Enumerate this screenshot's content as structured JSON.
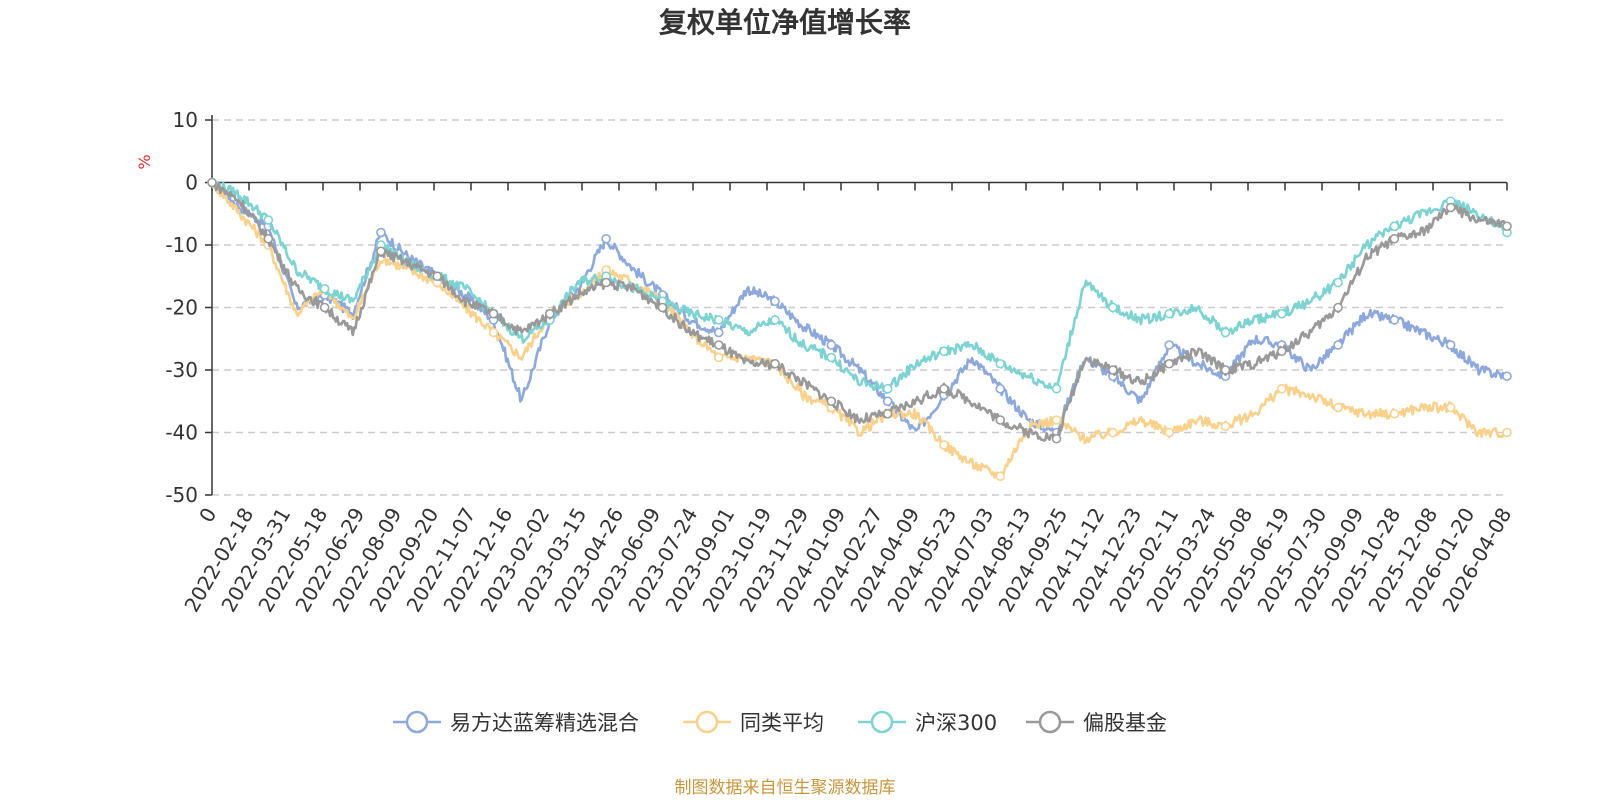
{
  "chart_data": {
    "type": "line",
    "title": "复权单位净值增长率",
    "ylabel": "%",
    "ylim": [
      -50,
      10
    ],
    "yticks": [
      10,
      0,
      -10,
      -20,
      -30,
      -40,
      -50
    ],
    "grid": true,
    "legend_position": "bottom",
    "x_ticks": [
      "0",
      "2022-02-18",
      "2022-03-31",
      "2022-05-18",
      "2022-06-29",
      "2022-08-09",
      "2022-09-20",
      "2022-11-07",
      "2022-12-16",
      "2023-02-02",
      "2023-03-15",
      "2023-04-26",
      "2023-06-09",
      "2023-07-24",
      "2023-09-01",
      "2023-10-19",
      "2023-11-29",
      "2024-01-09",
      "2024-02-27",
      "2024-04-09",
      "2024-05-23",
      "2024-07-03",
      "2024-08-13",
      "2024-09-25",
      "2024-11-12",
      "2024-12-23",
      "2025-02-11",
      "2025-03-24",
      "2025-05-08",
      "2025-06-19",
      "2025-07-30",
      "2025-09-09",
      "2025-10-28",
      "2025-12-08",
      "2026-01-20",
      "2026-04-08"
    ],
    "series": [
      {
        "name": "易方达蓝筹精选混合",
        "color": "#8ca8dc",
        "values": [
          0,
          -4,
          -7,
          -20,
          -18,
          -21,
          -8,
          -12,
          -15,
          -18,
          -22,
          -35,
          -22,
          -17,
          -9,
          -14,
          -18,
          -22,
          -24,
          -17,
          -19,
          -23,
          -26,
          -30,
          -35,
          -40,
          -34,
          -28,
          -33,
          -38,
          -40,
          -28,
          -31,
          -35,
          -26,
          -29,
          -31,
          -25,
          -26,
          -30,
          -26,
          -21,
          -22,
          -24,
          -26,
          -30,
          -31
        ]
      },
      {
        "name": "同类平均",
        "color": "#fad18c",
        "values": [
          0,
          -5,
          -10,
          -21,
          -17,
          -22,
          -12,
          -14,
          -16,
          -20,
          -24,
          -28,
          -21,
          -18,
          -14,
          -16,
          -19,
          -24,
          -28,
          -28,
          -29,
          -34,
          -36,
          -40,
          -37,
          -37,
          -42,
          -45,
          -47,
          -39,
          -38,
          -41,
          -40,
          -38,
          -40,
          -38,
          -39,
          -37,
          -33,
          -34,
          -36,
          -37,
          -37,
          -36,
          -36,
          -40,
          -40
        ]
      },
      {
        "name": "沪深300",
        "color": "#7dd3d2",
        "values": [
          0,
          -2,
          -6,
          -14,
          -17,
          -19,
          -10,
          -13,
          -15,
          -17,
          -21,
          -25,
          -22,
          -16,
          -15,
          -17,
          -19,
          -21,
          -22,
          -24,
          -22,
          -26,
          -28,
          -32,
          -33,
          -29,
          -27,
          -26,
          -29,
          -31,
          -33,
          -16,
          -20,
          -22,
          -21,
          -20,
          -24,
          -22,
          -21,
          -19,
          -16,
          -10,
          -7,
          -5,
          -3,
          -5,
          -8
        ]
      },
      {
        "name": "偏股基金",
        "color": "#999999",
        "values": [
          0,
          -3,
          -9,
          -17,
          -20,
          -24,
          -11,
          -13,
          -15,
          -19,
          -21,
          -24,
          -21,
          -18,
          -16,
          -17,
          -20,
          -24,
          -26,
          -29,
          -29,
          -32,
          -35,
          -38,
          -37,
          -35,
          -33,
          -35,
          -38,
          -40,
          -41,
          -28,
          -30,
          -32,
          -29,
          -27,
          -30,
          -29,
          -27,
          -24,
          -20,
          -12,
          -9,
          -8,
          -4,
          -6,
          -7
        ]
      }
    ]
  },
  "source_note": "制图数据来自恒生聚源数据库"
}
